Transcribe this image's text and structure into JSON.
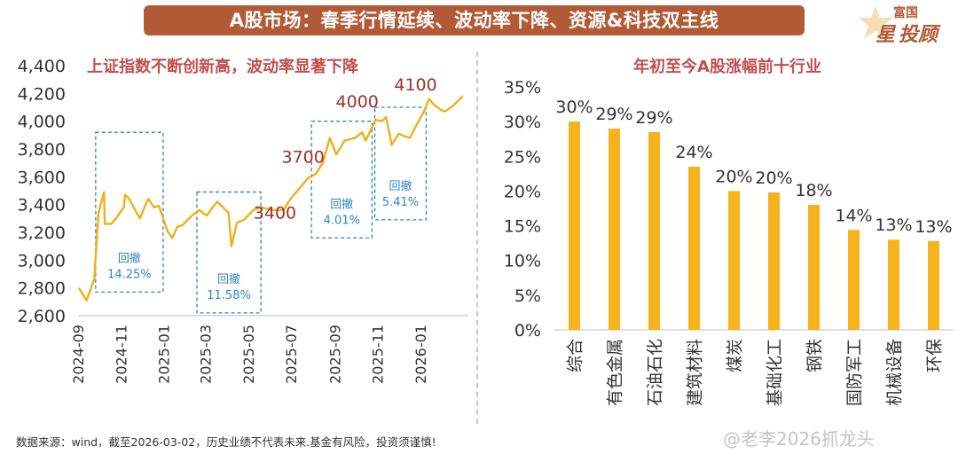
{
  "banner": {
    "title": "A股市场：春季行情延续、波动率下降、资源&科技双主线"
  },
  "logo": {
    "top": "富国",
    "left": "星",
    "right": "投顾"
  },
  "colors": {
    "banner": "#b25a35",
    "title": "#c0504d",
    "line": "#f0b016",
    "bar": "#f5b31c",
    "box": "#2e86c1",
    "accent": "#e8a020",
    "level": "#a0302c"
  },
  "footer": {
    "text": "数据来源：wind，截至2026-03-02，历史业绩不代表未来.基金有风险，投资须谨慎!"
  },
  "watermark": {
    "text": "@老李2026抓龙头"
  },
  "chart_data": [
    {
      "type": "line",
      "title": "上证指数不断创新高，波动率显著下降",
      "ylim": [
        2600,
        4400
      ],
      "yticks": [
        "2,600",
        "2,800",
        "3,000",
        "3,200",
        "3,400",
        "3,600",
        "3,800",
        "4,000",
        "4,200",
        "4,400"
      ],
      "xticks": [
        "2024-09",
        "2024-11",
        "2025-01",
        "2025-03",
        "2025-05",
        "2025-07",
        "2025-09",
        "2025-11",
        "2026-01"
      ],
      "series": [
        {
          "points": [
            [
              "2024-09-02",
              2800
            ],
            [
              "2024-09-13",
              2710
            ],
            [
              "2024-09-24",
              2860
            ],
            [
              "2024-09-30",
              3340
            ],
            [
              "2024-10-08",
              3490
            ],
            [
              "2024-10-09",
              3260
            ],
            [
              "2024-10-18",
              3260
            ],
            [
              "2024-10-25",
              3300
            ],
            [
              "2024-11-05",
              3380
            ],
            [
              "2024-11-07",
              3470
            ],
            [
              "2024-11-13",
              3440
            ],
            [
              "2024-11-20",
              3370
            ],
            [
              "2024-11-28",
              3300
            ],
            [
              "2024-12-06",
              3400
            ],
            [
              "2024-12-10",
              3440
            ],
            [
              "2024-12-18",
              3380
            ],
            [
              "2024-12-25",
              3390
            ],
            [
              "2025-01-06",
              3210
            ],
            [
              "2025-01-13",
              3160
            ],
            [
              "2025-01-20",
              3240
            ],
            [
              "2025-01-27",
              3250
            ],
            [
              "2025-02-10",
              3320
            ],
            [
              "2025-02-20",
              3360
            ],
            [
              "2025-03-03",
              3320
            ],
            [
              "2025-03-10",
              3370
            ],
            [
              "2025-03-18",
              3420
            ],
            [
              "2025-03-28",
              3370
            ],
            [
              "2025-04-03",
              3340
            ],
            [
              "2025-04-07",
              3100
            ],
            [
              "2025-04-15",
              3270
            ],
            [
              "2025-04-25",
              3290
            ],
            [
              "2025-05-08",
              3360
            ],
            [
              "2025-05-20",
              3380
            ],
            [
              "2025-06-03",
              3360
            ],
            [
              "2025-06-20",
              3360
            ],
            [
              "2025-06-30",
              3440
            ],
            [
              "2025-07-10",
              3500
            ],
            [
              "2025-07-25",
              3590
            ],
            [
              "2025-08-05",
              3620
            ],
            [
              "2025-08-15",
              3700
            ],
            [
              "2025-08-25",
              3880
            ],
            [
              "2025-09-03",
              3760
            ],
            [
              "2025-09-15",
              3860
            ],
            [
              "2025-09-30",
              3880
            ],
            [
              "2025-10-10",
              3920
            ],
            [
              "2025-10-15",
              3860
            ],
            [
              "2025-10-29",
              4010
            ],
            [
              "2025-11-07",
              4000
            ],
            [
              "2025-11-13",
              4030
            ],
            [
              "2025-11-21",
              3830
            ],
            [
              "2025-12-01",
              3910
            ],
            [
              "2025-12-10",
              3890
            ],
            [
              "2025-12-17",
              3880
            ],
            [
              "2025-12-25",
              3960
            ],
            [
              "2026-01-07",
              4080
            ],
            [
              "2026-01-13",
              4160
            ],
            [
              "2026-01-20",
              4120
            ],
            [
              "2026-01-30",
              4080
            ],
            [
              "2026-02-05",
              4070
            ],
            [
              "2026-02-16",
              4110
            ],
            [
              "2026-03-02",
              4180
            ]
          ]
        }
      ],
      "level_labels": [
        {
          "text": "3700",
          "x": "2025-07-18",
          "y": 3700
        },
        {
          "text": "3400",
          "x": "2025-06-08",
          "y": 3300
        },
        {
          "text": "4000",
          "x": "2025-10-03",
          "y": 4100
        },
        {
          "text": "4100",
          "x": "2025-12-25",
          "y": 4220
        }
      ],
      "drawdowns": [
        {
          "label": "回撤",
          "value": "14.25%",
          "from": "2024-09-26",
          "to": "2024-12-31",
          "high": 3920,
          "low": 2770
        },
        {
          "label": "回撤",
          "value": "11.58%",
          "from": "2025-02-17",
          "to": "2025-05-19",
          "high": 3490,
          "low": 2620
        },
        {
          "label": "回撤",
          "value": "4.01%",
          "from": "2025-07-30",
          "to": "2025-10-24",
          "high": 4000,
          "low": 3160
        },
        {
          "label": "回撤",
          "value": "5.41%",
          "from": "2025-10-28",
          "to": "2026-01-09",
          "high": 4100,
          "low": 3290
        }
      ]
    },
    {
      "type": "bar",
      "title": "年初至今A股涨幅前十行业",
      "ylim": [
        0,
        35
      ],
      "yticks": [
        "0%",
        "5%",
        "10%",
        "15%",
        "20%",
        "25%",
        "30%",
        "35%"
      ],
      "categories": [
        "综合",
        "有色金属",
        "石油石化",
        "建筑材料",
        "煤炭",
        "基础化工",
        "钢铁",
        "国防军工",
        "机械设备",
        "环保"
      ],
      "values": [
        30,
        29,
        28.5,
        23.5,
        20,
        19.8,
        18,
        14.4,
        13,
        12.8
      ],
      "value_labels": [
        "30%",
        "29%",
        "29%",
        "24%",
        "20%",
        "20%",
        "18%",
        "14%",
        "13%",
        "13%"
      ]
    }
  ]
}
